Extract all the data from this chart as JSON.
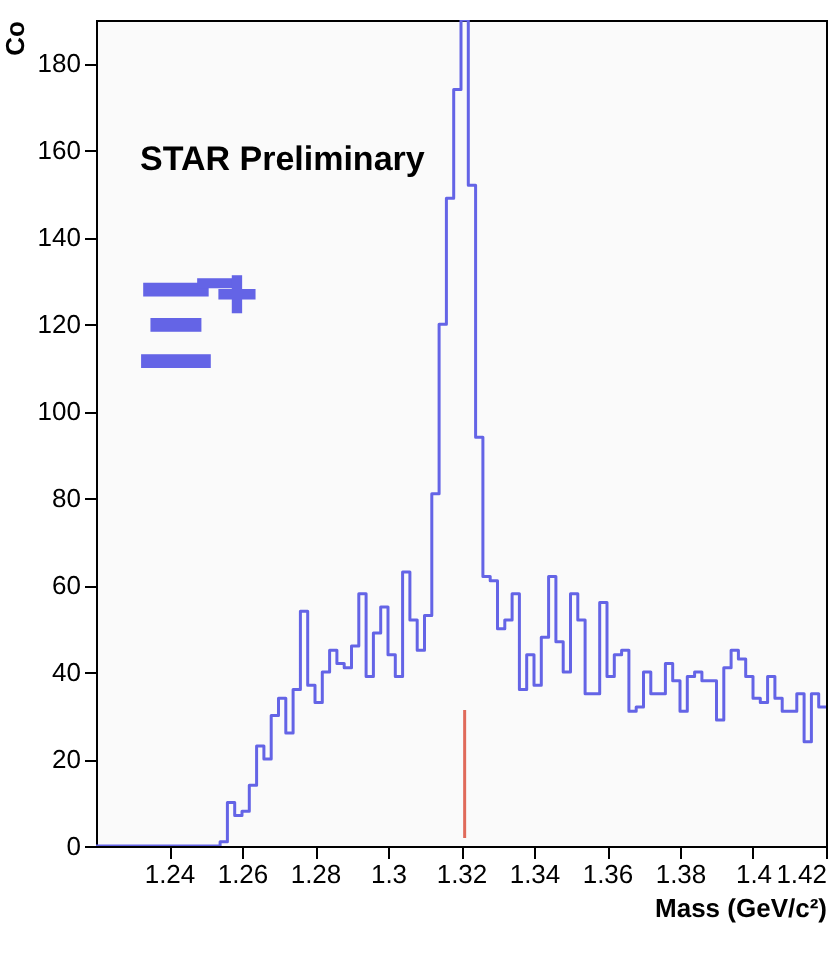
{
  "chart_data": {
    "type": "histogram",
    "xlabel": "Mass (GeV/c²)",
    "ylabel": "Co",
    "annotations": [
      "STAR Preliminary",
      "Ξ̄⁺"
    ],
    "bins": [
      1.22,
      1.222,
      1.224,
      1.226,
      1.228,
      1.23,
      1.232,
      1.234,
      1.236,
      1.238,
      1.24,
      1.242,
      1.244,
      1.246,
      1.248,
      1.25,
      1.252,
      1.254,
      1.256,
      1.258,
      1.26,
      1.262,
      1.264,
      1.266,
      1.268,
      1.27,
      1.272,
      1.274,
      1.276,
      1.278,
      1.28,
      1.282,
      1.284,
      1.286,
      1.288,
      1.29,
      1.292,
      1.294,
      1.296,
      1.298,
      1.3,
      1.302,
      1.304,
      1.306,
      1.308,
      1.31,
      1.312,
      1.314,
      1.316,
      1.318,
      1.32,
      1.322,
      1.324,
      1.326,
      1.328,
      1.33,
      1.332,
      1.334,
      1.336,
      1.338,
      1.34,
      1.342,
      1.344,
      1.346,
      1.348,
      1.35,
      1.352,
      1.354,
      1.356,
      1.358,
      1.36,
      1.362,
      1.364,
      1.366,
      1.368,
      1.37,
      1.372,
      1.374,
      1.376,
      1.378,
      1.38,
      1.382,
      1.384,
      1.386,
      1.388,
      1.39,
      1.392,
      1.394,
      1.396,
      1.398,
      1.4,
      1.402,
      1.404,
      1.406,
      1.408,
      1.41,
      1.412,
      1.414,
      1.416,
      1.418,
      1.42
    ],
    "values": [
      0,
      0,
      0,
      0,
      0,
      0,
      0,
      0,
      0,
      0,
      0,
      0,
      0,
      0,
      0,
      0,
      0,
      1,
      10,
      7,
      8,
      14,
      23,
      20,
      30,
      34,
      26,
      36,
      54,
      37,
      33,
      40,
      45,
      42,
      41,
      46,
      58,
      39,
      49,
      55,
      44,
      39,
      63,
      52,
      45,
      53,
      81,
      120,
      149,
      174,
      190,
      152,
      94,
      62,
      61,
      50,
      52,
      58,
      36,
      44,
      37,
      48,
      62,
      47,
      40,
      58,
      52,
      35,
      35,
      56,
      39,
      44,
      45,
      31,
      32,
      40,
      35,
      35,
      42,
      38,
      31,
      39,
      40,
      38,
      38,
      29,
      41,
      45,
      43,
      39,
      34,
      33,
      39,
      34,
      31,
      31,
      35,
      24,
      35,
      32
    ],
    "color": "#6464e6",
    "xlim": [
      1.22,
      1.42
    ],
    "ylim": [
      0,
      190
    ],
    "xticks": [
      1.24,
      1.26,
      1.28,
      1.3,
      1.32,
      1.34,
      1.36,
      1.38,
      1.4,
      1.42
    ],
    "yticks": [
      0,
      20,
      40,
      60,
      80,
      100,
      120,
      140,
      160,
      180
    ],
    "ref_lines": [
      {
        "axis": "x",
        "value": 1.321,
        "color": "#e06a5a"
      }
    ],
    "grid": false
  }
}
